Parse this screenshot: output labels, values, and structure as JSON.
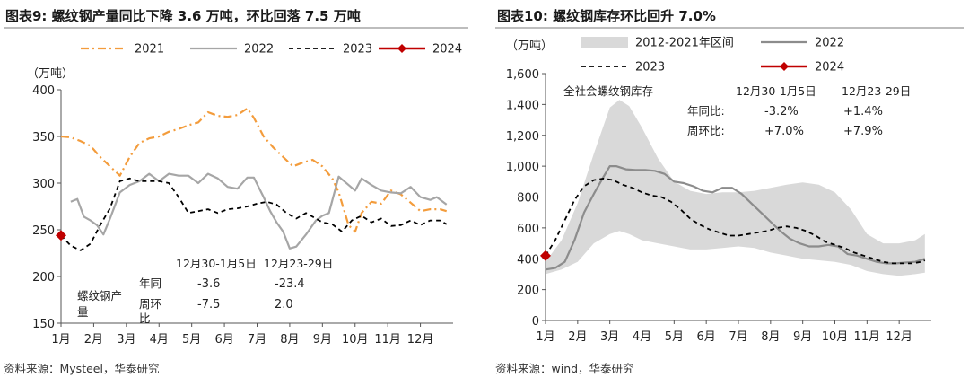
{
  "left": {
    "title": "图表9:  螺纹钢产量同比下降 3.6 万吨，环比回落 7.5 万吨",
    "source": "资料来源：Mysteel，华泰研究",
    "unit": "（万吨）",
    "annot_label": "螺纹钢产\n量",
    "table": {
      "headers": [
        "12月30-1月5日",
        "12月23-29日"
      ],
      "rows": [
        {
          "label": "年同",
          "values": [
            "-3.6",
            "-23.4"
          ]
        },
        {
          "label": "周环\n比",
          "values": [
            "-7.5",
            "2.0"
          ]
        }
      ]
    },
    "colors": {
      "2021": "#F39C3C",
      "2022": "#A6A6A6",
      "2023": "#000000",
      "2024": "#C00000"
    },
    "chart_data": {
      "type": "line",
      "xlabel": "",
      "ylabel": "万吨",
      "ylim": [
        150,
        400
      ],
      "yticks": [
        150,
        200,
        250,
        300,
        350,
        400
      ],
      "xlim": [
        1,
        13
      ],
      "xticks": [
        1,
        2,
        3,
        4,
        5,
        6,
        7,
        8,
        9,
        10,
        11,
        12
      ],
      "xtick_labels": [
        "1月",
        "2月",
        "3月",
        "4月",
        "5月",
        "6月",
        "7月",
        "8月",
        "9月",
        "10月",
        "11月",
        "12月"
      ],
      "legend": [
        "2021",
        "2022",
        "2023",
        "2024"
      ],
      "series": [
        {
          "name": "2021",
          "style": "dashdot",
          "x": [
            1.0,
            1.3,
            1.6,
            1.9,
            2.2,
            2.5,
            2.8,
            3.1,
            3.4,
            3.7,
            4.0,
            4.3,
            4.6,
            4.9,
            5.2,
            5.5,
            5.8,
            6.1,
            6.4,
            6.7,
            6.9,
            7.2,
            7.5,
            7.8,
            8.1,
            8.4,
            8.7,
            9.0,
            9.3,
            9.5,
            9.8,
            10.0,
            10.2,
            10.5,
            10.8,
            11.1,
            11.4,
            11.7,
            12.0,
            12.3,
            12.6,
            12.8
          ],
          "y": [
            350,
            349,
            345,
            340,
            328,
            318,
            308,
            328,
            343,
            348,
            350,
            355,
            358,
            362,
            365,
            376,
            372,
            371,
            373,
            380,
            370,
            350,
            338,
            328,
            318,
            322,
            325,
            318,
            305,
            290,
            255,
            248,
            268,
            280,
            278,
            292,
            288,
            279,
            270,
            272,
            272,
            270
          ]
        },
        {
          "name": "2022",
          "style": "solid",
          "x": [
            1.3,
            1.5,
            1.7,
            1.9,
            2.1,
            2.3,
            2.5,
            2.8,
            3.1,
            3.4,
            3.7,
            4.0,
            4.3,
            4.6,
            4.9,
            5.2,
            5.5,
            5.8,
            6.1,
            6.4,
            6.7,
            6.9,
            7.2,
            7.4,
            7.6,
            7.8,
            8.0,
            8.2,
            8.5,
            8.8,
            9.0,
            9.2,
            9.5,
            9.8,
            10.0,
            10.2,
            10.5,
            10.8,
            11.1,
            11.4,
            11.7,
            12.0,
            12.3,
            12.5,
            12.8
          ],
          "y": [
            280,
            283,
            264,
            260,
            255,
            245,
            262,
            290,
            298,
            302,
            310,
            302,
            310,
            308,
            308,
            300,
            310,
            305,
            296,
            294,
            306,
            306,
            285,
            270,
            258,
            248,
            230,
            232,
            245,
            260,
            265,
            268,
            307,
            298,
            292,
            305,
            298,
            292,
            290,
            289,
            296,
            285,
            282,
            285,
            277
          ]
        },
        {
          "name": "2023",
          "style": "dashed",
          "x": [
            1.0,
            1.3,
            1.6,
            1.9,
            2.2,
            2.5,
            2.8,
            3.1,
            3.4,
            3.7,
            4.0,
            4.3,
            4.6,
            4.9,
            5.2,
            5.5,
            5.8,
            6.1,
            6.4,
            6.7,
            7.0,
            7.3,
            7.6,
            7.9,
            8.2,
            8.5,
            8.8,
            9.0,
            9.3,
            9.6,
            9.9,
            10.2,
            10.5,
            10.8,
            11.1,
            11.4,
            11.7,
            12.0,
            12.3,
            12.6,
            12.8
          ],
          "y": [
            244,
            233,
            228,
            235,
            255,
            273,
            302,
            305,
            302,
            302,
            302,
            300,
            285,
            268,
            270,
            272,
            268,
            272,
            273,
            275,
            278,
            280,
            277,
            268,
            262,
            268,
            262,
            258,
            256,
            248,
            260,
            265,
            258,
            262,
            254,
            255,
            260,
            255,
            260,
            260,
            256
          ]
        },
        {
          "name": "2024",
          "style": "marker",
          "x": [
            1.0
          ],
          "y": [
            244
          ]
        }
      ]
    }
  },
  "right": {
    "title": "图表10:  螺纹钢库存环比回升 7.0%",
    "source": "资料来源：wind，华泰研究",
    "unit": "（万吨）",
    "annot_title": "全社会螺纹钢库存",
    "table": {
      "headers": [
        "12月30-1月5日",
        "12月23-29日"
      ],
      "rows": [
        {
          "label": "年同比:",
          "values": [
            "-3.2%",
            "+1.4%"
          ]
        },
        {
          "label": "周环比:",
          "values": [
            "+7.0%",
            "+7.9%"
          ]
        }
      ]
    },
    "colors": {
      "band": "#D9D9D9",
      "2022": "#8C8C8C",
      "2023": "#000000",
      "2024": "#C00000"
    },
    "chart_data": {
      "type": "line",
      "xlabel": "",
      "ylabel": "万吨",
      "ylim": [
        0,
        1600
      ],
      "yticks": [
        0,
        200,
        400,
        600,
        800,
        1000,
        1200,
        1400,
        1600
      ],
      "ytick_labels": [
        "0",
        "200",
        "400",
        "600",
        "800",
        "1,000",
        "1,200",
        "1,400",
        "1,600"
      ],
      "xlim": [
        1,
        13
      ],
      "xticks": [
        1,
        2,
        3,
        4,
        5,
        6,
        7,
        8,
        9,
        10,
        11,
        12
      ],
      "xtick_labels": [
        "1月",
        "2月",
        "3月",
        "4月",
        "5月",
        "6月",
        "7月",
        "8月",
        "9月",
        "10月",
        "11月",
        "12月"
      ],
      "legend": [
        "2012-2021年区间",
        "2022",
        "2023",
        "2024"
      ],
      "band": {
        "name": "2012-2021年区间",
        "x": [
          1.0,
          1.5,
          2.0,
          2.5,
          3.0,
          3.3,
          3.6,
          4.0,
          4.5,
          5.0,
          5.5,
          6.0,
          6.5,
          7.0,
          7.5,
          8.0,
          8.5,
          9.0,
          9.5,
          10.0,
          10.5,
          11.0,
          11.5,
          12.0,
          12.5,
          12.8
        ],
        "upper": [
          380,
          520,
          760,
          1080,
          1380,
          1430,
          1390,
          1250,
          1050,
          900,
          840,
          820,
          830,
          830,
          840,
          860,
          880,
          895,
          880,
          830,
          720,
          560,
          500,
          500,
          520,
          560
        ],
        "lower": [
          300,
          330,
          380,
          500,
          560,
          580,
          560,
          520,
          500,
          480,
          460,
          460,
          470,
          480,
          470,
          440,
          420,
          400,
          390,
          380,
          360,
          320,
          300,
          290,
          300,
          310
        ]
      },
      "series": [
        {
          "name": "2022",
          "style": "solid",
          "x": [
            1.0,
            1.3,
            1.6,
            1.9,
            2.2,
            2.5,
            2.8,
            3.0,
            3.2,
            3.5,
            3.8,
            4.1,
            4.4,
            4.7,
            5.0,
            5.3,
            5.6,
            5.9,
            6.2,
            6.5,
            6.8,
            7.1,
            7.4,
            7.7,
            8.0,
            8.3,
            8.6,
            8.9,
            9.2,
            9.5,
            9.8,
            10.1,
            10.4,
            10.7,
            11.0,
            11.3,
            11.6,
            11.9,
            12.2,
            12.5,
            12.8
          ],
          "y": [
            330,
            340,
            380,
            520,
            700,
            820,
            930,
            1000,
            1000,
            980,
            975,
            975,
            970,
            950,
            900,
            890,
            870,
            840,
            830,
            860,
            860,
            820,
            760,
            700,
            640,
            580,
            530,
            500,
            480,
            480,
            490,
            480,
            430,
            420,
            400,
            380,
            370,
            370,
            375,
            380,
            400
          ]
        },
        {
          "name": "2023",
          "style": "dashed",
          "x": [
            1.0,
            1.3,
            1.6,
            1.9,
            2.2,
            2.5,
            2.8,
            3.1,
            3.4,
            3.7,
            4.0,
            4.3,
            4.6,
            4.9,
            5.2,
            5.5,
            5.8,
            6.1,
            6.4,
            6.7,
            7.0,
            7.3,
            7.6,
            7.9,
            8.2,
            8.5,
            8.8,
            9.1,
            9.4,
            9.7,
            10.0,
            10.3,
            10.6,
            10.9,
            11.2,
            11.5,
            11.8,
            12.1,
            12.4,
            12.7,
            12.8
          ],
          "y": [
            420,
            520,
            650,
            780,
            870,
            910,
            920,
            910,
            880,
            860,
            830,
            810,
            800,
            770,
            720,
            660,
            620,
            590,
            570,
            550,
            550,
            560,
            570,
            580,
            600,
            610,
            600,
            580,
            550,
            510,
            490,
            470,
            440,
            420,
            400,
            380,
            370,
            370,
            370,
            380,
            390
          ]
        },
        {
          "name": "2024",
          "style": "marker",
          "x": [
            1.0
          ],
          "y": [
            420
          ]
        }
      ]
    }
  }
}
